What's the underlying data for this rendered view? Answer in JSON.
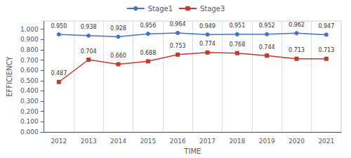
{
  "chart_data": {
    "type": "line",
    "x_label": "TIME",
    "y_label": "EFFICIENCY",
    "categories": [
      "2012",
      "2013",
      "2014",
      "2015",
      "2016",
      "2017",
      "2018",
      "2019",
      "2020",
      "2021"
    ],
    "series": [
      {
        "name": "Stage1",
        "color": "#4472C4",
        "marker": "circle",
        "values": [
          0.95,
          0.938,
          0.928,
          0.956,
          0.964,
          0.949,
          0.951,
          0.952,
          0.962,
          0.947
        ],
        "value_labels": [
          "0.950",
          "0.938",
          "0.928",
          "0.956",
          "0.964",
          "0.949",
          "0.951",
          "0.952",
          "0.962",
          "0.947"
        ]
      },
      {
        "name": "Stage3",
        "color": "#C0392B",
        "marker": "square",
        "values": [
          0.487,
          0.704,
          0.66,
          0.688,
          0.753,
          0.774,
          0.768,
          0.744,
          0.713,
          0.713
        ],
        "value_labels": [
          "0.487",
          "0.704",
          "0.660",
          "0.688",
          "0.753",
          "0.774",
          "0.768",
          "0.744",
          "0.713",
          "0.713"
        ]
      }
    ],
    "ylim": [
      0.0,
      1.08
    ],
    "yticks": [
      {
        "value": 0.0,
        "label": "0.000"
      },
      {
        "value": 0.1,
        "label": "0.100"
      },
      {
        "value": 0.2,
        "label": "0.200"
      },
      {
        "value": 0.3,
        "label": "0.300"
      },
      {
        "value": 0.4,
        "label": "0.400"
      },
      {
        "value": 0.5,
        "label": "0.500"
      },
      {
        "value": 0.6,
        "label": "0.600"
      },
      {
        "value": 0.7,
        "label": "0.700"
      },
      {
        "value": 0.8,
        "label": "0.800"
      },
      {
        "value": 0.9,
        "label": "0.900"
      },
      {
        "value": 1.0,
        "label": "1.000"
      }
    ],
    "data_labels": true,
    "grid": "x",
    "legend": "top"
  }
}
